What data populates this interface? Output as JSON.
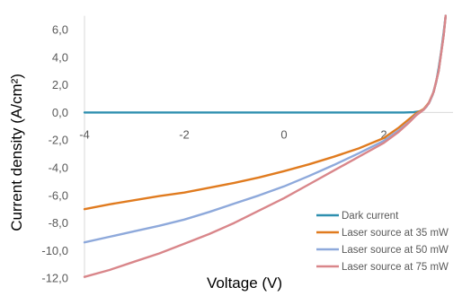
{
  "chart_data": {
    "type": "line",
    "title": "",
    "xlabel": "Voltage (V)",
    "ylabel": "Current density (A/cm²)",
    "xlim": [
      -4,
      3.3
    ],
    "ylim": [
      -12,
      7
    ],
    "x_ticks": [
      -4,
      -2,
      0,
      2
    ],
    "x_tick_labels": [
      "-4",
      "-2",
      "0",
      "2"
    ],
    "y_ticks": [
      6,
      4,
      2,
      0,
      -2,
      -4,
      -6,
      -8,
      -10,
      -12
    ],
    "y_tick_labels": [
      "6,0",
      "4,0",
      "2,0",
      "0,0",
      "-2,0",
      "-4,0",
      "-6,0",
      "-8,0",
      "-10,0",
      "-12,0"
    ],
    "grid": false,
    "legend_position": "bottom-right",
    "series": [
      {
        "name": "Dark current",
        "color": "#2E8FAF",
        "points": [
          [
            -4,
            0
          ],
          [
            2.4,
            0
          ],
          [
            2.6,
            0.02
          ],
          [
            2.75,
            0.1
          ],
          [
            2.85,
            0.4
          ],
          [
            2.92,
            0.8
          ],
          [
            2.98,
            1.3
          ],
          [
            3.05,
            2.2
          ],
          [
            3.1,
            3.2
          ],
          [
            3.15,
            4.4
          ],
          [
            3.2,
            5.8
          ],
          [
            3.24,
            7
          ]
        ]
      },
      {
        "name": "Laser source at 35 mW",
        "color": "#E07B1F",
        "points": [
          [
            -4,
            -7.0
          ],
          [
            -3.5,
            -6.65
          ],
          [
            -3,
            -6.35
          ],
          [
            -2.5,
            -6.05
          ],
          [
            -2,
            -5.8
          ],
          [
            -1.5,
            -5.45
          ],
          [
            -1,
            -5.1
          ],
          [
            -0.5,
            -4.7
          ],
          [
            0,
            -4.25
          ],
          [
            0.5,
            -3.75
          ],
          [
            1,
            -3.2
          ],
          [
            1.5,
            -2.6
          ],
          [
            2,
            -1.85
          ],
          [
            2.3,
            -1.1
          ],
          [
            2.5,
            -0.5
          ],
          [
            2.65,
            -0.05
          ],
          [
            2.8,
            0.25
          ],
          [
            2.9,
            0.7
          ],
          [
            3,
            1.5
          ],
          [
            3.1,
            3.0
          ],
          [
            3.2,
            5.6
          ],
          [
            3.24,
            7
          ]
        ]
      },
      {
        "name": "Laser source at 50 mW",
        "color": "#8EA9DB",
        "points": [
          [
            -4,
            -9.4
          ],
          [
            -3.5,
            -9.0
          ],
          [
            -3,
            -8.6
          ],
          [
            -2.5,
            -8.2
          ],
          [
            -2,
            -7.75
          ],
          [
            -1.5,
            -7.2
          ],
          [
            -1,
            -6.6
          ],
          [
            -0.5,
            -6.0
          ],
          [
            0,
            -5.35
          ],
          [
            0.5,
            -4.6
          ],
          [
            1,
            -3.8
          ],
          [
            1.5,
            -2.95
          ],
          [
            2,
            -2.05
          ],
          [
            2.3,
            -1.3
          ],
          [
            2.5,
            -0.7
          ],
          [
            2.65,
            -0.15
          ],
          [
            2.8,
            0.2
          ],
          [
            2.9,
            0.65
          ],
          [
            3,
            1.5
          ],
          [
            3.1,
            3.0
          ],
          [
            3.2,
            5.6
          ],
          [
            3.24,
            7
          ]
        ]
      },
      {
        "name": "Laser source at 75 mW",
        "color": "#D9868A",
        "points": [
          [
            -4,
            -11.9
          ],
          [
            -3.5,
            -11.4
          ],
          [
            -3,
            -10.8
          ],
          [
            -2.5,
            -10.2
          ],
          [
            -2,
            -9.5
          ],
          [
            -1.5,
            -8.8
          ],
          [
            -1,
            -8.0
          ],
          [
            -0.5,
            -7.1
          ],
          [
            0,
            -6.2
          ],
          [
            0.5,
            -5.2
          ],
          [
            1,
            -4.2
          ],
          [
            1.5,
            -3.2
          ],
          [
            2,
            -2.2
          ],
          [
            2.3,
            -1.4
          ],
          [
            2.5,
            -0.75
          ],
          [
            2.65,
            -0.2
          ],
          [
            2.8,
            0.2
          ],
          [
            2.9,
            0.65
          ],
          [
            3,
            1.5
          ],
          [
            3.1,
            3.0
          ],
          [
            3.2,
            5.6
          ],
          [
            3.24,
            7
          ]
        ]
      }
    ]
  }
}
